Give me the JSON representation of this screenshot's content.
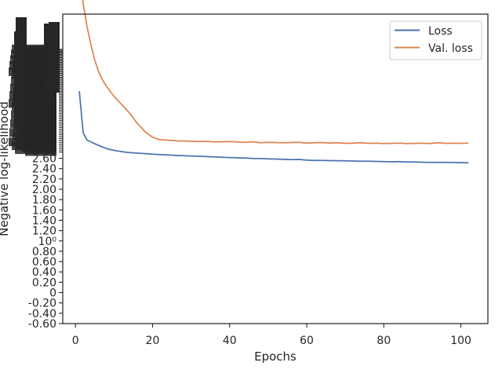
{
  "chart_data": {
    "type": "line",
    "title": "",
    "xlabel": "Epochs",
    "ylabel": "Negative log-likelihood",
    "xlim": [
      -3.3,
      107
    ],
    "x_ticks": [
      0,
      20,
      40,
      60,
      80,
      100
    ],
    "y_ticks_readable": [
      "-0.60",
      "-0.40",
      "-0.20",
      "0",
      "0.20",
      "0.40",
      "0.60",
      "0.80",
      "10⁰",
      "1.20",
      "1.40",
      "1.60",
      "1.80",
      "2.00",
      "2.20",
      "2.40",
      "2.60"
    ],
    "y_ticks_readable_values": [
      -0.6,
      -0.4,
      -0.2,
      0,
      0.2,
      0.4,
      0.6,
      0.8,
      1.0,
      1.2,
      1.4,
      1.6,
      1.8,
      2.0,
      2.2,
      2.4,
      2.6
    ],
    "y_ticks_note": "tick labels above ~2.6 overlap densely and are illegible",
    "grid": false,
    "legend_position": "top-right",
    "series": [
      {
        "name": "Loss",
        "color": "#4c72b0",
        "x": [
          1,
          2,
          3,
          4,
          5,
          6,
          7,
          8,
          9,
          10,
          11,
          12,
          13,
          14,
          15,
          16,
          17,
          18,
          19,
          20,
          22,
          24,
          26,
          28,
          30,
          32,
          34,
          36,
          38,
          40,
          42,
          44,
          46,
          48,
          50,
          52,
          54,
          56,
          58,
          60,
          62,
          64,
          66,
          68,
          70,
          72,
          74,
          76,
          78,
          80,
          82,
          84,
          86,
          88,
          90,
          92,
          94,
          96,
          98,
          100,
          102
        ],
        "y": [
          3.9,
          3.1,
          2.95,
          2.92,
          2.88,
          2.85,
          2.82,
          2.79,
          2.77,
          2.755,
          2.74,
          2.73,
          2.72,
          2.71,
          2.705,
          2.7,
          2.695,
          2.69,
          2.685,
          2.68,
          2.67,
          2.665,
          2.655,
          2.65,
          2.645,
          2.64,
          2.632,
          2.628,
          2.62,
          2.615,
          2.61,
          2.605,
          2.598,
          2.594,
          2.59,
          2.585,
          2.58,
          2.575,
          2.578,
          2.565,
          2.56,
          2.558,
          2.555,
          2.553,
          2.55,
          2.548,
          2.545,
          2.543,
          2.54,
          2.535,
          2.533,
          2.535,
          2.53,
          2.528,
          2.525,
          2.522,
          2.52,
          2.52,
          2.518,
          2.515,
          2.512
        ]
      },
      {
        "name": "Val. loss",
        "color": "#dd8452",
        "x": [
          1,
          2,
          3,
          4,
          5,
          6,
          7,
          8,
          9,
          10,
          11,
          12,
          13,
          14,
          15,
          16,
          17,
          18,
          19,
          20,
          21,
          22,
          24,
          26,
          28,
          30,
          32,
          34,
          36,
          38,
          40,
          42,
          44,
          46,
          48,
          50,
          52,
          54,
          56,
          58,
          60,
          62,
          64,
          66,
          68,
          70,
          72,
          74,
          76,
          78,
          80,
          82,
          84,
          86,
          88,
          90,
          92,
          94,
          96,
          98,
          100,
          102
        ],
        "y": [
          6.2,
          5.6,
          5.15,
          4.8,
          4.5,
          4.28,
          4.12,
          4.0,
          3.9,
          3.8,
          3.72,
          3.64,
          3.56,
          3.48,
          3.38,
          3.28,
          3.2,
          3.12,
          3.06,
          3.01,
          2.98,
          2.96,
          2.95,
          2.94,
          2.935,
          2.93,
          2.925,
          2.93,
          2.915,
          2.92,
          2.925,
          2.915,
          2.91,
          2.92,
          2.9,
          2.91,
          2.905,
          2.9,
          2.905,
          2.91,
          2.895,
          2.9,
          2.905,
          2.895,
          2.9,
          2.89,
          2.895,
          2.9,
          2.89,
          2.895,
          2.885,
          2.89,
          2.895,
          2.885,
          2.89,
          2.895,
          2.885,
          2.9,
          2.89,
          2.895,
          2.89,
          2.895
        ]
      }
    ]
  }
}
